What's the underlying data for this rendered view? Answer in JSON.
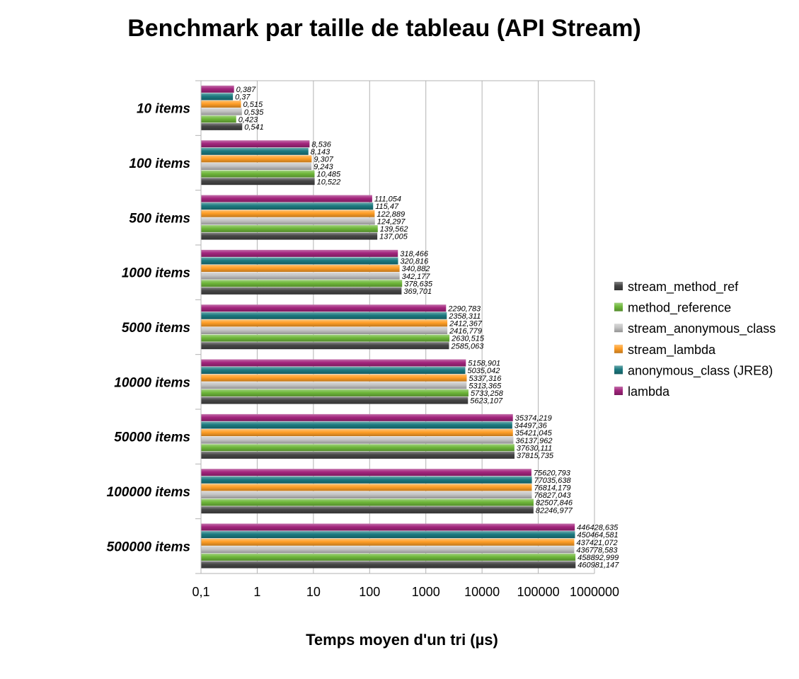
{
  "chart_data": {
    "type": "bar",
    "orientation": "horizontal",
    "title": "Benchmark par taille de tableau (API Stream)",
    "xlabel": "Temps moyen d'un tri  (µs)",
    "ylabel": "",
    "x_scale": "log",
    "xlim": [
      0.1,
      1000000
    ],
    "x_ticks": [
      "0,1",
      "1",
      "10",
      "100",
      "1000",
      "10000",
      "100000",
      "1000000"
    ],
    "grid": true,
    "legend_position": "right",
    "categories": [
      "10 items",
      "100 items",
      "500 items",
      "1000 items",
      "5000 items",
      "10000 items",
      "50000 items",
      "100000 items",
      "500000 items"
    ],
    "series": [
      {
        "name": "lambda",
        "color": "#a3257d",
        "values": [
          0.387,
          8.536,
          111.054,
          318.466,
          2290.783,
          5158.901,
          35374.219,
          75620.793,
          446428.635
        ],
        "labels": [
          "0,387",
          "8,536",
          "111,054",
          "318,466",
          "2290,783",
          "5158,901",
          "35374,219",
          "75620,793",
          "446428,635"
        ]
      },
      {
        "name": "anonymous_class (JRE8)",
        "color": "#1c7a80",
        "values": [
          0.37,
          8.143,
          115.47,
          320.816,
          2358.311,
          5035.042,
          34497.36,
          77035.638,
          450464.581
        ],
        "labels": [
          "0,37",
          "8,143",
          "115,47",
          "320,816",
          "2358,311",
          "5035,042",
          "34497,36",
          "77035,638",
          "450464,581"
        ]
      },
      {
        "name": "stream_lambda",
        "color": "#ff9e26",
        "values": [
          0.515,
          9.307,
          122.889,
          340.882,
          2412.367,
          5337.316,
          35421.045,
          76814.179,
          437421.072
        ],
        "labels": [
          "0,515",
          "9,307",
          "122,889",
          "340,882",
          "2412,367",
          "5337,316",
          "35421,045",
          "76814,179",
          "437421,072"
        ]
      },
      {
        "name": "stream_anonymous_class",
        "color": "#c3c3c3",
        "values": [
          0.535,
          9.243,
          124.297,
          342.177,
          2416.779,
          5313.365,
          36137.962,
          76827.043,
          436778.583
        ],
        "labels": [
          "0,535",
          "9,243",
          "124,297",
          "342,177",
          "2416,779",
          "5313,365",
          "36137,962",
          "76827,043",
          "436778,583"
        ]
      },
      {
        "name": "method_reference",
        "color": "#6fb83a",
        "values": [
          0.423,
          10.485,
          139.562,
          378.635,
          2630.515,
          5733.258,
          37630.111,
          82507.846,
          458892.999
        ],
        "labels": [
          "0,423",
          "10,485",
          "139,562",
          "378,635",
          "2630,515",
          "5733,258",
          "37630,111",
          "82507,846",
          "458892,999"
        ]
      },
      {
        "name": "stream_method_ref",
        "color": "#454545",
        "values": [
          0.541,
          10.522,
          137.005,
          369.701,
          2585.063,
          5623.107,
          37815.735,
          82246.977,
          460981.147
        ],
        "labels": [
          "0,541",
          "10,522",
          "137,005",
          "369,701",
          "2585,063",
          "5623,107",
          "37815,735",
          "82246,977",
          "460981,147"
        ]
      }
    ],
    "legend_order": [
      "stream_method_ref",
      "method_reference",
      "stream_anonymous_class",
      "stream_lambda",
      "anonymous_class (JRE8)",
      "lambda"
    ]
  }
}
